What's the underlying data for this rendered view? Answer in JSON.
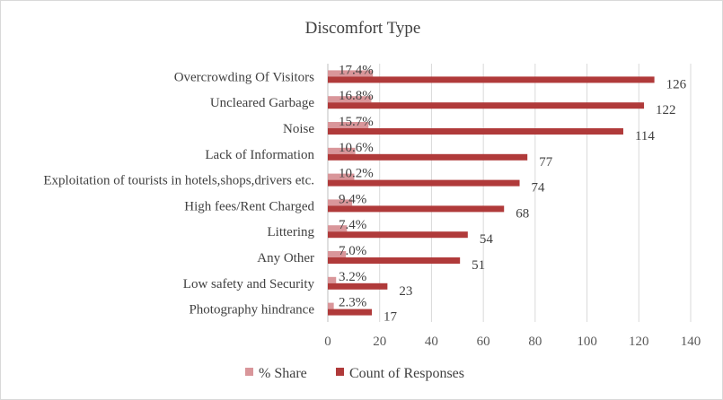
{
  "chart_data": {
    "type": "bar",
    "orientation": "horizontal",
    "title": "Discomfort Type",
    "categories": [
      "Overcrowding Of Visitors",
      "Uncleared Garbage",
      "Noise",
      "Lack of Information",
      "Exploitation of tourists in hotels,shops,drivers etc.",
      "High fees/Rent Charged",
      "Littering",
      "Any Other",
      "Low safety and Security",
      "Photography hindrance"
    ],
    "series": [
      {
        "name": "% Share",
        "values": [
          17.4,
          16.8,
          15.7,
          10.6,
          10.2,
          9.4,
          7.4,
          7.0,
          3.2,
          2.3
        ],
        "labels": [
          "17.4%",
          "16.8%",
          "15.7%",
          "10.6%",
          "10.2%",
          "9.4%",
          "7.4%",
          "7.0%",
          "3.2%",
          "2.3%"
        ],
        "color": "#d9969a"
      },
      {
        "name": "Count of Responses",
        "values": [
          126,
          122,
          114,
          77,
          74,
          68,
          54,
          51,
          23,
          17
        ],
        "labels": [
          "126",
          "122",
          "114",
          "77",
          "74",
          "68",
          "54",
          "51",
          "23",
          "17"
        ],
        "color": "#b03a3a"
      }
    ],
    "xlim": [
      0,
      140
    ],
    "xticks": [
      "0",
      "20",
      "40",
      "60",
      "80",
      "100",
      "120",
      "140"
    ],
    "grid": true,
    "legend_position": "bottom"
  }
}
